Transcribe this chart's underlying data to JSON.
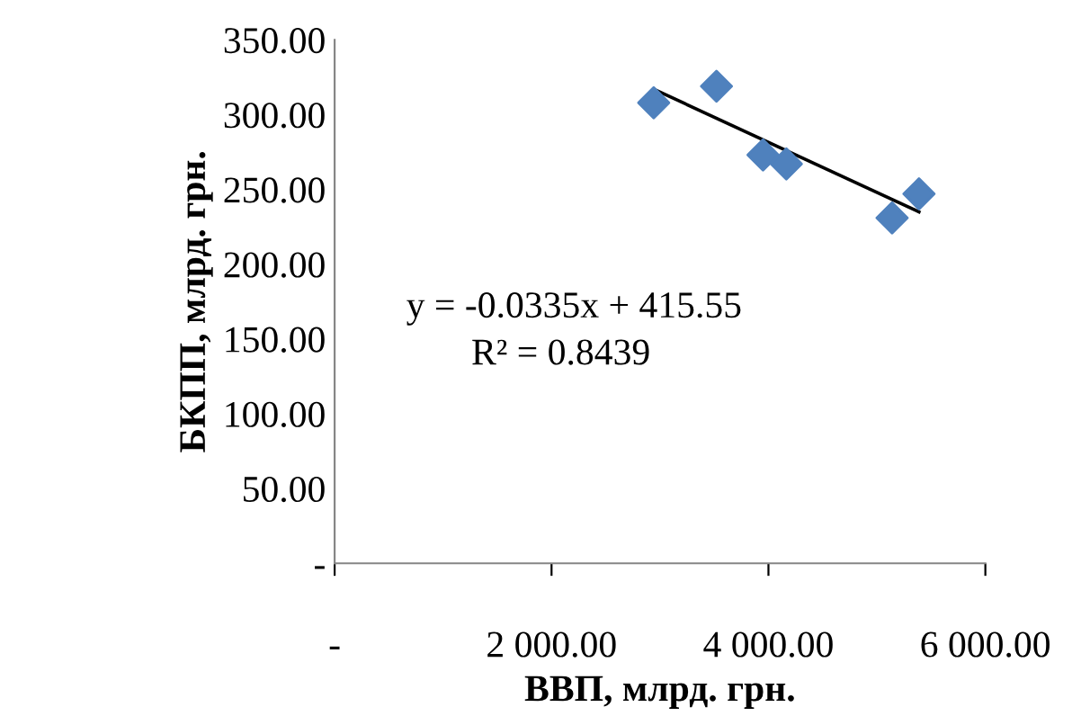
{
  "chart_data": {
    "type": "scatter",
    "xlabel": "ВВП, млрд. грн.",
    "ylabel": "БКПП, млрд. грн.",
    "series": [
      {
        "color": "#4f81bd",
        "marker": "diamond",
        "x": [
          2942,
          3521,
          3950,
          4165,
          5140,
          5388
        ],
        "values": [
          308,
          319,
          273,
          267,
          231,
          247
        ]
      },
      {
        "type": "line",
        "color": "#000000",
        "marker": "none",
        "line_style": "solid",
        "x": [
          2942,
          5388
        ],
        "values": [
          317,
          235
        ]
      }
    ],
    "xlim": [
      0,
      6000
    ],
    "ylim": [
      0,
      350
    ],
    "xticks": [
      {
        "value": 0,
        "label": "-"
      },
      {
        "value": 2000,
        "label": "2 000.00"
      },
      {
        "value": 4000,
        "label": "4 000.00"
      },
      {
        "value": 6000,
        "label": "6 000.00"
      }
    ],
    "yticks": [
      {
        "value": 0,
        "label": "-"
      },
      {
        "value": 50,
        "label": "50.00"
      },
      {
        "value": 100,
        "label": "100.00"
      },
      {
        "value": 150,
        "label": "150.00"
      },
      {
        "value": 200,
        "label": "200.00"
      },
      {
        "value": 250,
        "label": "250.00"
      },
      {
        "value": 300,
        "label": "300.00"
      },
      {
        "value": 350,
        "label": "350.00"
      }
    ],
    "annotations": [
      "y = -0.0335x + 415.55",
      "R² = 0.8439"
    ],
    "grid": false,
    "legend": false
  }
}
